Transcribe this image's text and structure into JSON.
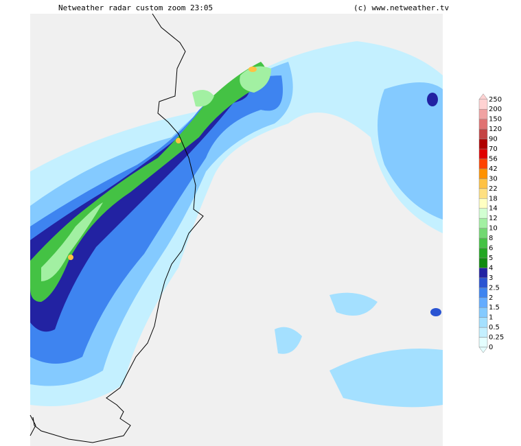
{
  "header": {
    "title": "Netweather radar custom zoom 23:05",
    "copyright": "(c) www.netweather.tv"
  },
  "legend": {
    "levels": [
      0,
      0.25,
      0.5,
      1,
      1.5,
      2,
      2.5,
      3,
      4,
      5,
      6,
      8,
      10,
      12,
      14,
      18,
      22,
      30,
      42,
      56,
      70,
      90,
      120,
      150,
      200,
      250
    ],
    "colors": [
      "#e4ffff",
      "#c4f0ff",
      "#a4e0ff",
      "#84caff",
      "#64acff",
      "#3e84f0",
      "#2a54d2",
      "#2222a2",
      "#108a10",
      "#22a622",
      "#44c244",
      "#72d872",
      "#a2f0a2",
      "#d2ffd2",
      "#ffffc2",
      "#ffe082",
      "#ffc244",
      "#ff9200",
      "#ff4200",
      "#e00000",
      "#b00000",
      "#c44444",
      "#e07272",
      "#f0a2a2",
      "#ffd2d2"
    ]
  }
}
